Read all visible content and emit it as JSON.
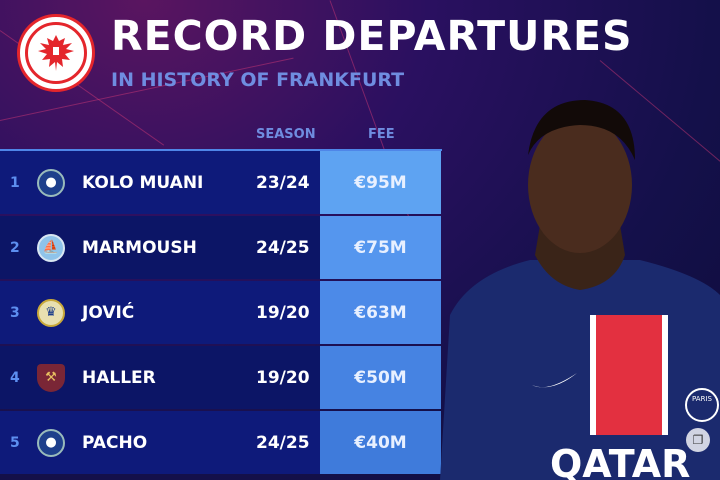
{
  "header": {
    "title": "RECORD DEPARTURES",
    "subtitle": "IN HISTORY OF FRANKFURT",
    "logo": "eintracht-frankfurt-eagle-crest"
  },
  "table": {
    "columns": {
      "season": "SEASON",
      "fee": "FEE"
    },
    "rows": [
      {
        "rank": "1",
        "club": "PSG",
        "player": "KOLO MUANI",
        "season": "23/24",
        "fee": "€95M",
        "fee_color": "#5ea3f2"
      },
      {
        "rank": "2",
        "club": "Manchester City",
        "player": "MARMOUSH",
        "season": "24/25",
        "fee": "€75M",
        "fee_color": "#5596ee"
      },
      {
        "rank": "3",
        "club": "Real Madrid",
        "player": "JOVIĆ",
        "season": "19/20",
        "fee": "€63M",
        "fee_color": "#4c8ae8"
      },
      {
        "rank": "4",
        "club": "West Ham",
        "player": "HALLER",
        "season": "19/20",
        "fee": "€50M",
        "fee_color": "#4683e2"
      },
      {
        "rank": "5",
        "club": "PSG",
        "player": "PACHO",
        "season": "24/25",
        "fee": "€40M",
        "fee_color": "#3f7bdb"
      }
    ]
  },
  "photo": {
    "jersey_sponsor": "QATAR",
    "jersey_crest": "PARIS"
  },
  "colors": {
    "accent": "#4f86e8",
    "row_bg": "#0e1a7a",
    "subtitle": "#6f8de0",
    "frankfurt_red": "#e4262c"
  }
}
